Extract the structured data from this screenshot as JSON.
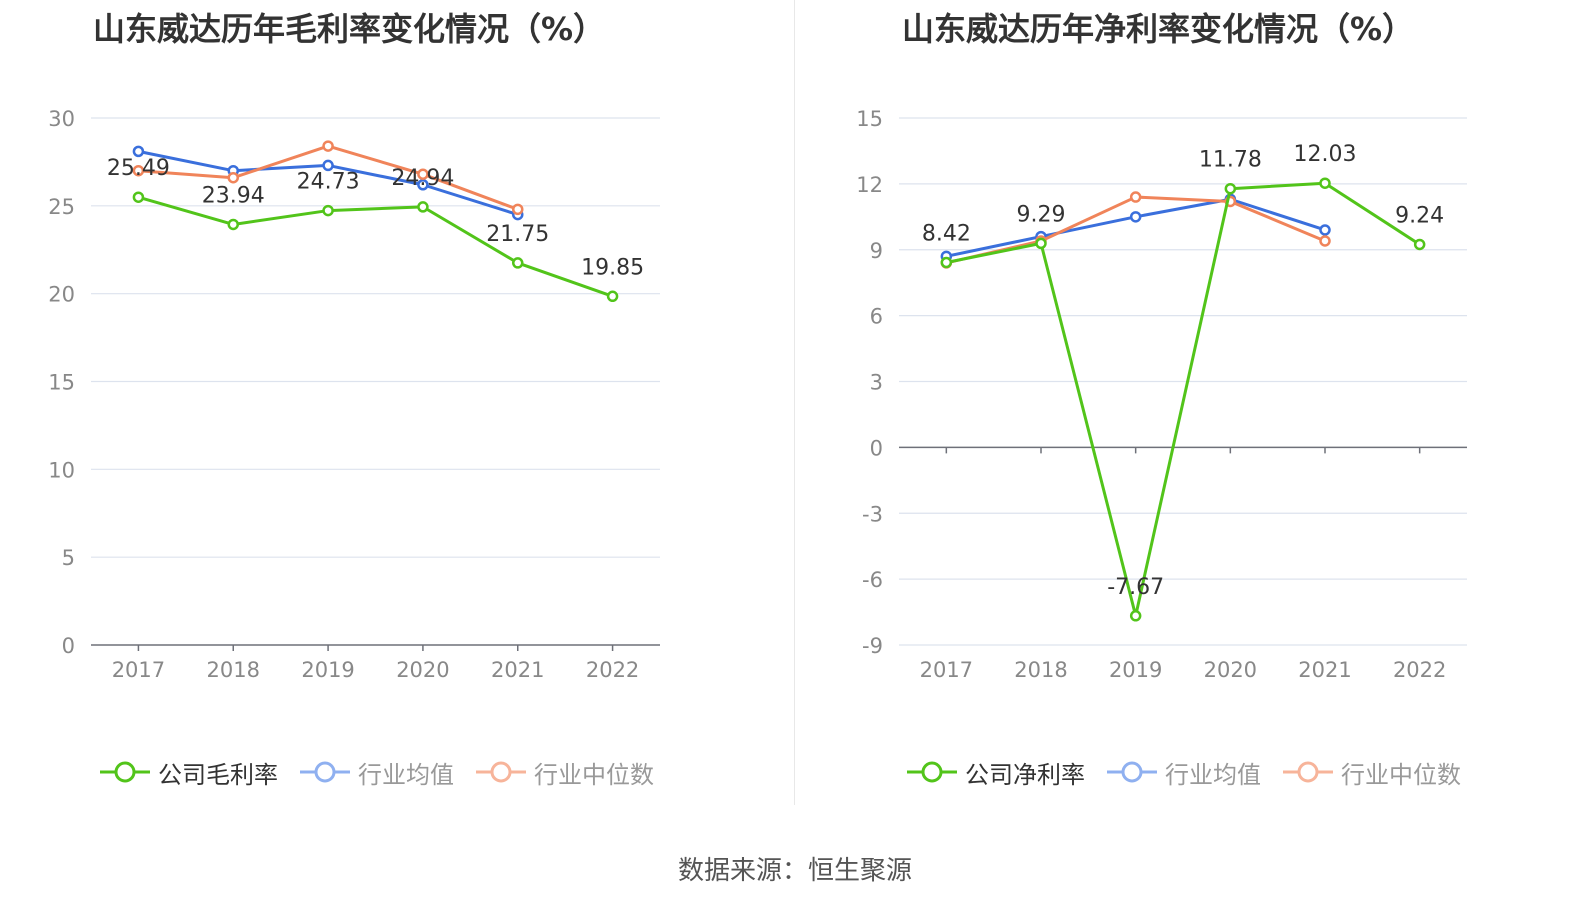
{
  "chart_data": [
    {
      "type": "line",
      "title": "山东威达历年毛利率变化情况（%）",
      "categories": [
        "2017",
        "2018",
        "2019",
        "2020",
        "2021",
        "2022"
      ],
      "ylim": [
        0,
        30
      ],
      "yticks": [
        0,
        5,
        10,
        15,
        20,
        25,
        30
      ],
      "grid": true,
      "legend_position": "bottom",
      "series": [
        {
          "name": "公司毛利率",
          "color": "#52c41a",
          "values": [
            25.49,
            23.94,
            24.73,
            24.94,
            21.75,
            19.85
          ],
          "labels": [
            "25.49",
            "23.94",
            "24.73",
            "24.94",
            "21.75",
            "19.85"
          ]
        },
        {
          "name": "行业均值",
          "color": "#3a6fdc",
          "values": [
            28.1,
            27.0,
            27.3,
            26.2,
            24.5,
            null
          ]
        },
        {
          "name": "行业中位数",
          "color": "#f0845a",
          "values": [
            27.0,
            26.6,
            28.4,
            26.8,
            24.8,
            null
          ]
        }
      ]
    },
    {
      "type": "line",
      "title": "山东威达历年净利率变化情况（%）",
      "categories": [
        "2017",
        "2018",
        "2019",
        "2020",
        "2021",
        "2022"
      ],
      "ylim": [
        -9,
        15
      ],
      "yticks": [
        -9,
        -6,
        -3,
        0,
        3,
        6,
        9,
        12,
        15
      ],
      "grid": true,
      "legend_position": "bottom",
      "series": [
        {
          "name": "公司净利率",
          "color": "#52c41a",
          "values": [
            8.42,
            9.29,
            -7.67,
            11.78,
            12.03,
            9.24
          ],
          "labels": [
            "8.42",
            "9.29",
            "-7.67",
            "11.78",
            "12.03",
            "9.24"
          ]
        },
        {
          "name": "行业均值",
          "color": "#3a6fdc",
          "values": [
            8.7,
            9.6,
            10.5,
            11.3,
            9.9,
            null
          ]
        },
        {
          "name": "行业中位数",
          "color": "#f0845a",
          "values": [
            8.4,
            9.4,
            11.4,
            11.2,
            9.4,
            null
          ]
        }
      ]
    }
  ],
  "legend_colors": {
    "series1": "#52c41a",
    "series2": "#8fb0f0",
    "series3": "#f7b49a"
  },
  "footer": "数据来源：恒生聚源"
}
